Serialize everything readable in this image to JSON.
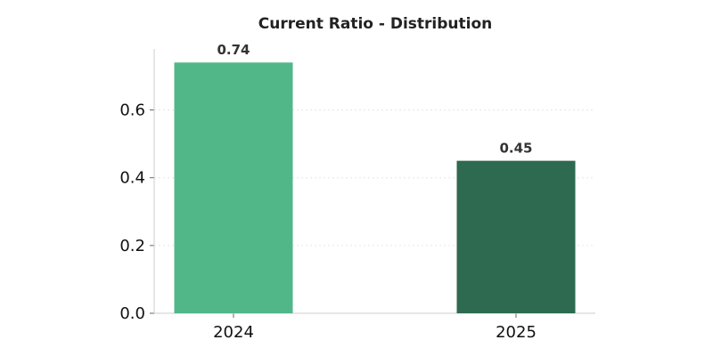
{
  "chart_data": {
    "type": "bar",
    "title": "Current Ratio - Distribution",
    "categories": [
      "2024",
      "2025"
    ],
    "values": [
      0.74,
      0.45
    ],
    "data_labels": [
      "0.74",
      "0.45"
    ],
    "bar_colors": [
      "#52b788",
      "#2d6a4f"
    ],
    "ylim": [
      0,
      0.78
    ],
    "yticks": [
      0.0,
      0.2,
      0.4,
      0.6
    ],
    "ytick_labels": [
      "0.0",
      "0.2",
      "0.4",
      "0.6"
    ],
    "grid": "horizontal dotted",
    "legend": "none"
  }
}
